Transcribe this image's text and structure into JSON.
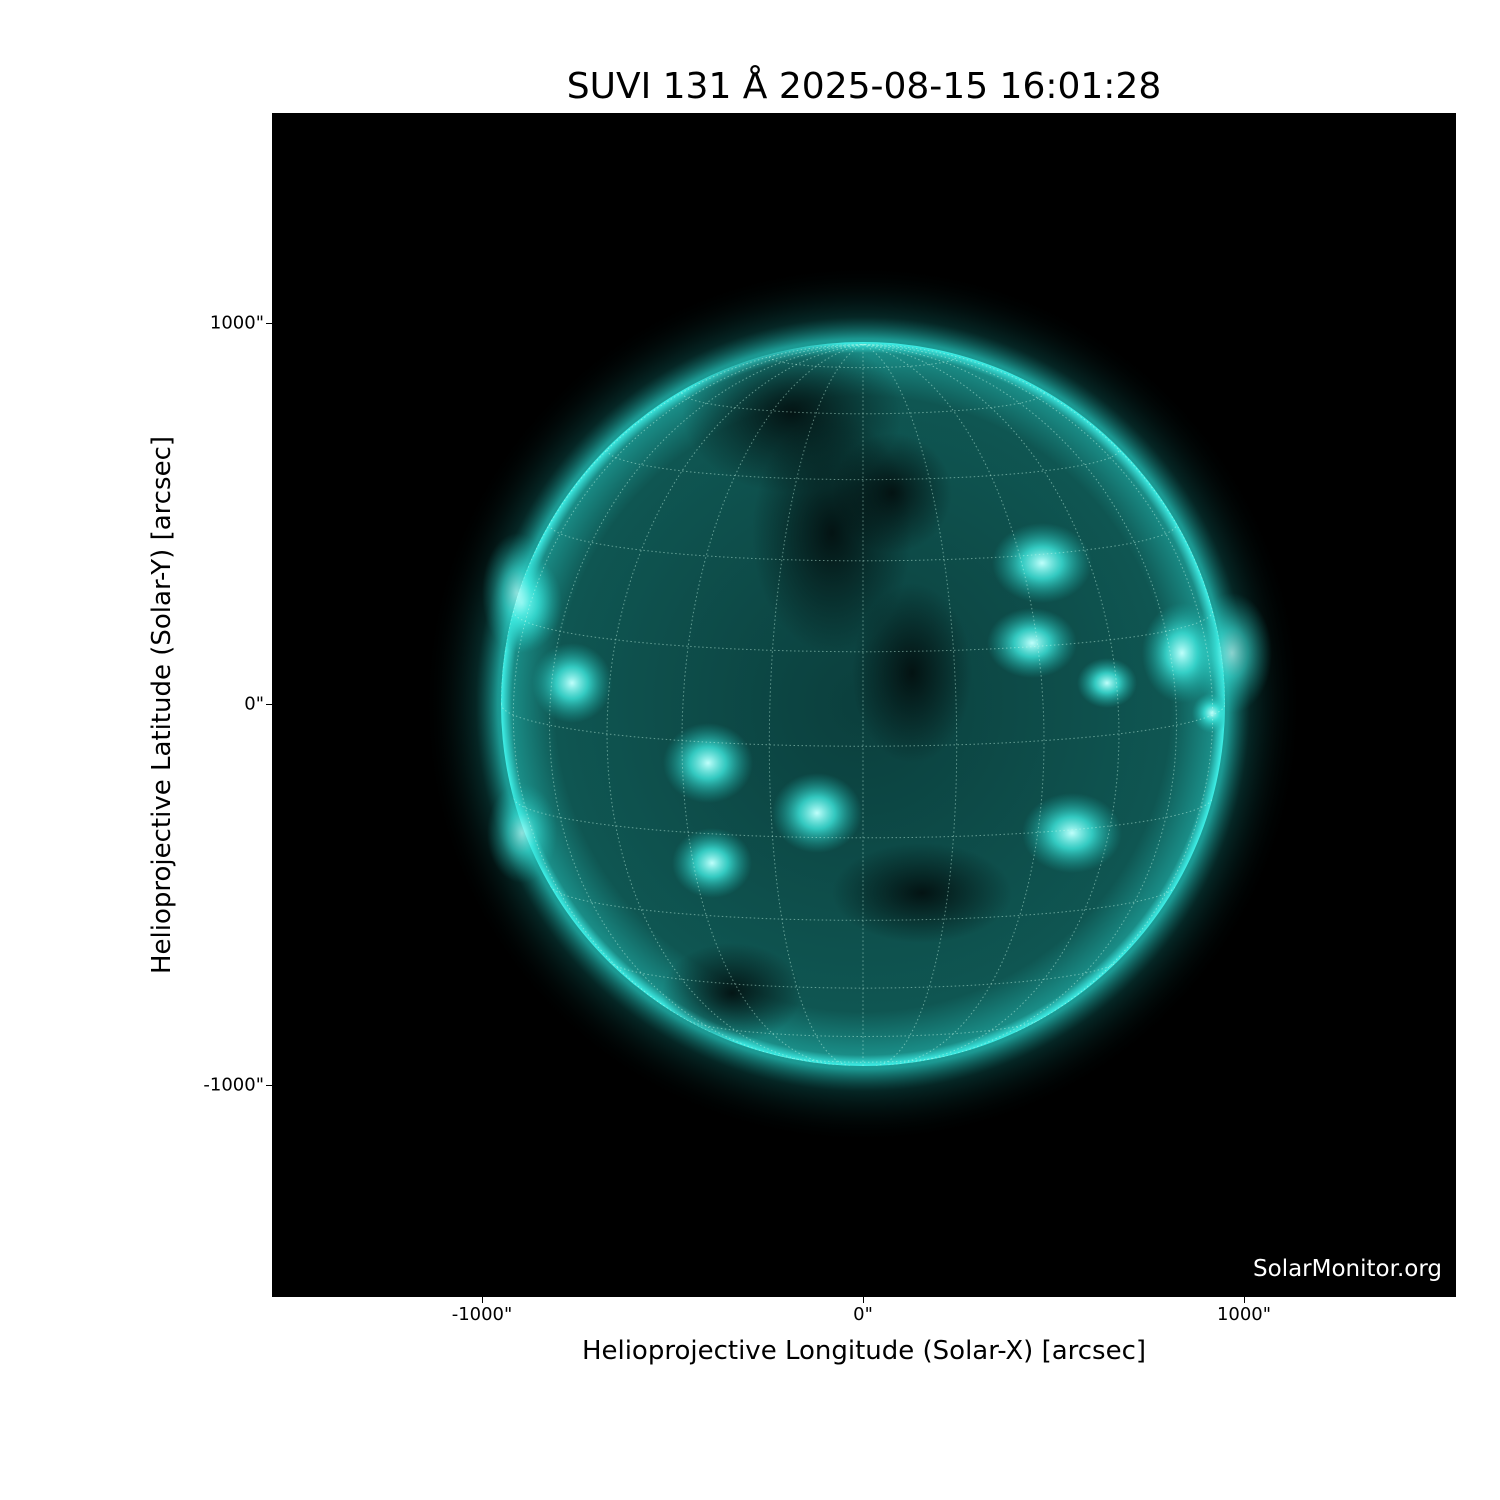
{
  "title": "SUVI 131 Å 2025-08-15 16:01:28",
  "watermark": "SolarMonitor.org",
  "xaxis": {
    "label": "Helioprojective Longitude (Solar-X) [arcsec]",
    "ticks": [
      "-1000\"",
      "0\"",
      "1000\""
    ],
    "range_arcsec": [
      -1550,
      1550
    ]
  },
  "yaxis": {
    "label": "Helioprojective Latitude (Solar-Y) [arcsec]",
    "ticks": [
      "1000\"",
      "0\"",
      "-1000\""
    ],
    "range_arcsec": [
      -1550,
      1550
    ]
  },
  "image": {
    "instrument": "SUVI",
    "wavelength": "131 Å",
    "colormap_color": "#1ee6dc",
    "background": "#000000",
    "solar_radius_arcsec": 950,
    "grid": "heliographic, dotted"
  }
}
